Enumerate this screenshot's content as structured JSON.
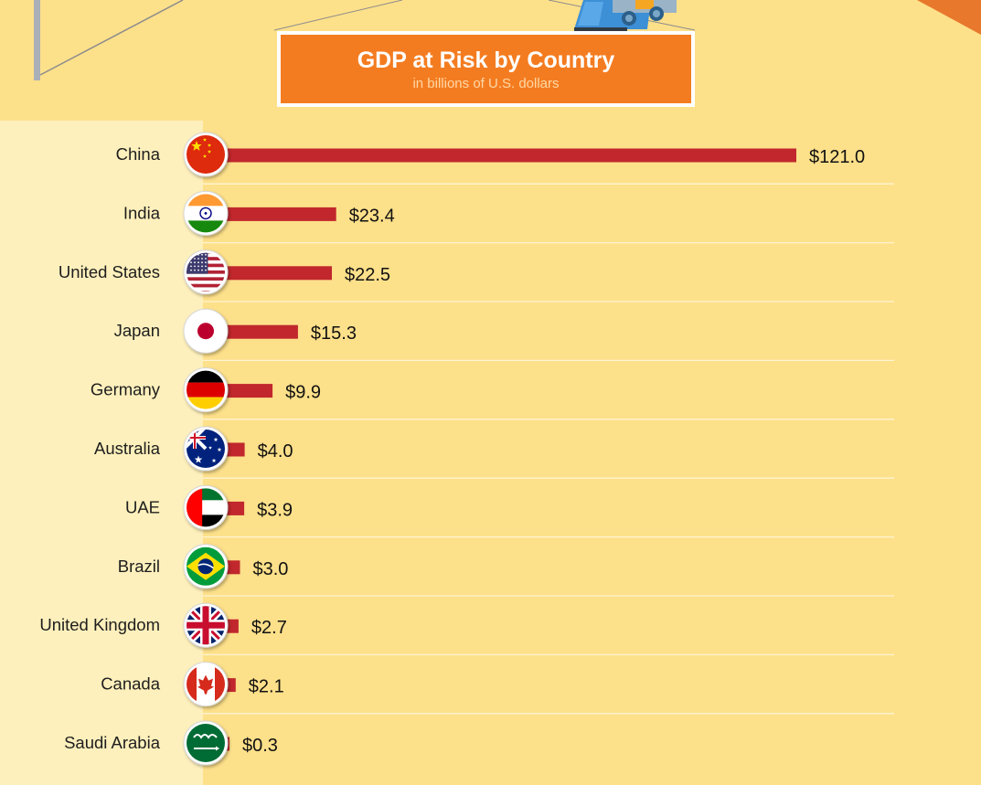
{
  "colors": {
    "background": "#fde08a",
    "label_panel": "#fef0bc",
    "title_box": "#f47c20",
    "bar": "#c1272d",
    "separator": "#fff4d2"
  },
  "decoration": {
    "truck_icon": "truck-icon",
    "pole_icon": "pole-icon"
  },
  "chart_data": {
    "type": "bar",
    "orientation": "horizontal",
    "title": "GDP at Risk by Country",
    "subtitle": "in billions of U.S. dollars",
    "categories": [
      "China",
      "India",
      "United States",
      "Japan",
      "Germany",
      "Australia",
      "UAE",
      "Brazil",
      "United Kingdom",
      "Canada",
      "Saudi Arabia"
    ],
    "values": [
      121.0,
      23.4,
      22.5,
      15.3,
      9.9,
      4.0,
      3.9,
      3.0,
      2.7,
      2.1,
      0.3
    ],
    "value_labels": [
      "$121.0",
      "$23.4",
      "$22.5",
      "$15.3",
      "$9.9",
      "$4.0",
      "$3.9",
      "$3.0",
      "$2.7",
      "$2.1",
      "$0.3"
    ],
    "flag_icons": [
      "china-flag-icon",
      "india-flag-icon",
      "united-states-flag-icon",
      "japan-flag-icon",
      "germany-flag-icon",
      "australia-flag-icon",
      "uae-flag-icon",
      "brazil-flag-icon",
      "united-kingdom-flag-icon",
      "canada-flag-icon",
      "saudi-arabia-flag-icon"
    ],
    "xlim": [
      0,
      121
    ],
    "grid": false,
    "legend": "none"
  }
}
